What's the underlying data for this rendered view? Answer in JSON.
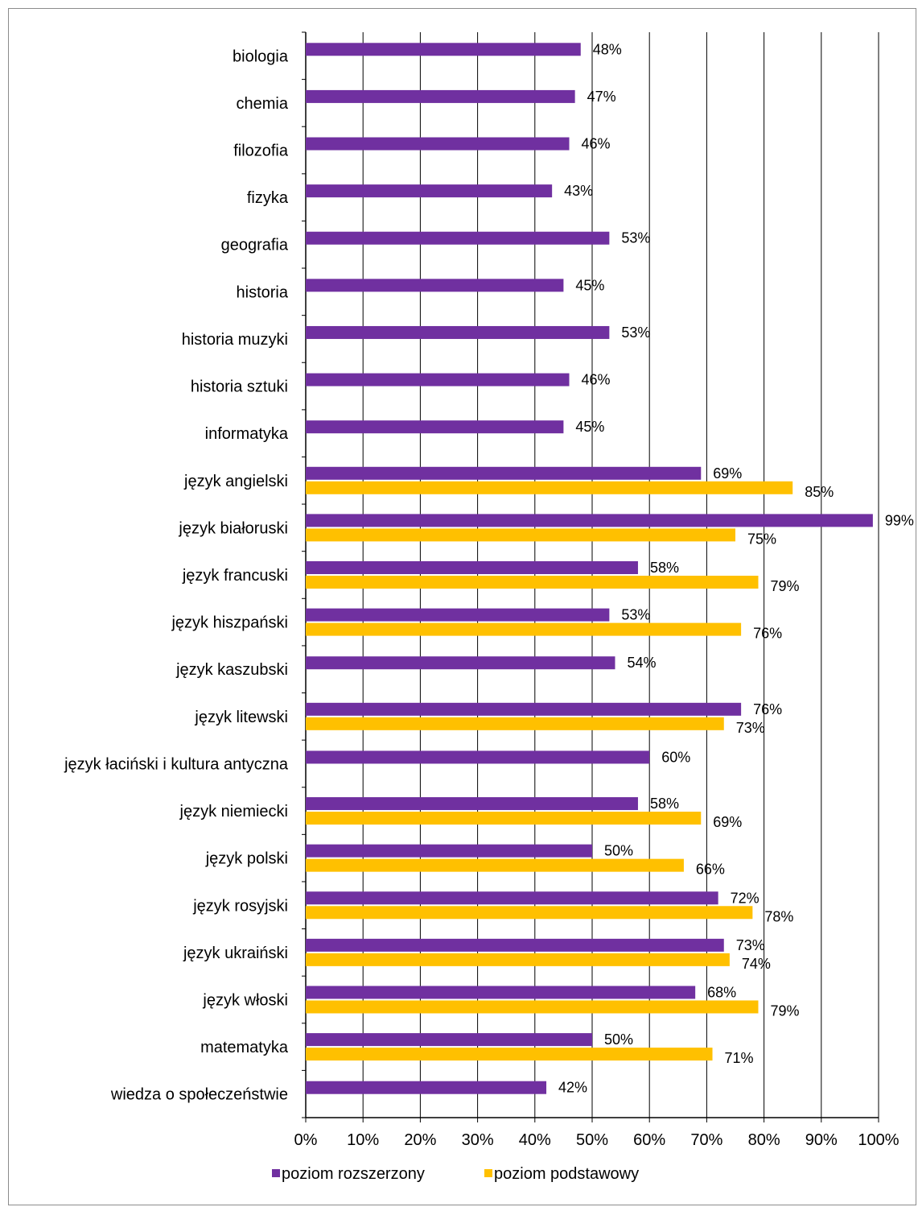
{
  "chart_data": {
    "type": "bar",
    "orientation": "horizontal",
    "categories": [
      "biologia",
      "chemia",
      "filozofia",
      "fizyka",
      "geografia",
      "historia",
      "historia muzyki",
      "historia sztuki",
      "informatyka",
      "język angielski",
      "język białoruski",
      "język francuski",
      "język hiszpański",
      "język kaszubski",
      "język litewski",
      "język łaciński i kultura antyczna",
      "język niemiecki",
      "język polski",
      "język rosyjski",
      "język ukraiński",
      "język włoski",
      "matematyka",
      "wiedza o społeczeństwie"
    ],
    "series": [
      {
        "name": "poziom rozszerzony",
        "color": "#7030A0",
        "values": [
          48,
          47,
          46,
          43,
          53,
          45,
          53,
          46,
          45,
          69,
          99,
          58,
          53,
          54,
          76,
          60,
          58,
          50,
          72,
          73,
          68,
          50,
          42
        ],
        "labels": [
          "48%",
          "47%",
          "46%",
          "43%",
          "53%",
          "45%",
          "53%",
          "46%",
          "45%",
          "69%",
          "99%",
          "58%",
          "53%",
          "54%",
          "76%",
          "60%",
          "58%",
          "50%",
          "72%",
          "73%",
          "68%",
          "50%",
          "42%"
        ]
      },
      {
        "name": "poziom podstawowy",
        "color": "#FFC000",
        "values": [
          null,
          null,
          null,
          null,
          null,
          null,
          null,
          null,
          null,
          85,
          75,
          79,
          76,
          null,
          73,
          null,
          69,
          66,
          78,
          74,
          79,
          71,
          null
        ],
        "labels": [
          "",
          "",
          "",
          "",
          "",
          "",
          "",
          "",
          "",
          "85%",
          "75%",
          "79%",
          "76%",
          "",
          "73%",
          "",
          "69%",
          "66%",
          "78%",
          "74%",
          "79%",
          "71%",
          ""
        ]
      }
    ],
    "xlim": [
      0,
      100
    ],
    "x_ticks": [
      "0%",
      "10%",
      "20%",
      "30%",
      "40%",
      "50%",
      "60%",
      "70%",
      "80%",
      "90%",
      "100%"
    ],
    "grid": true,
    "legend": "bottom"
  }
}
